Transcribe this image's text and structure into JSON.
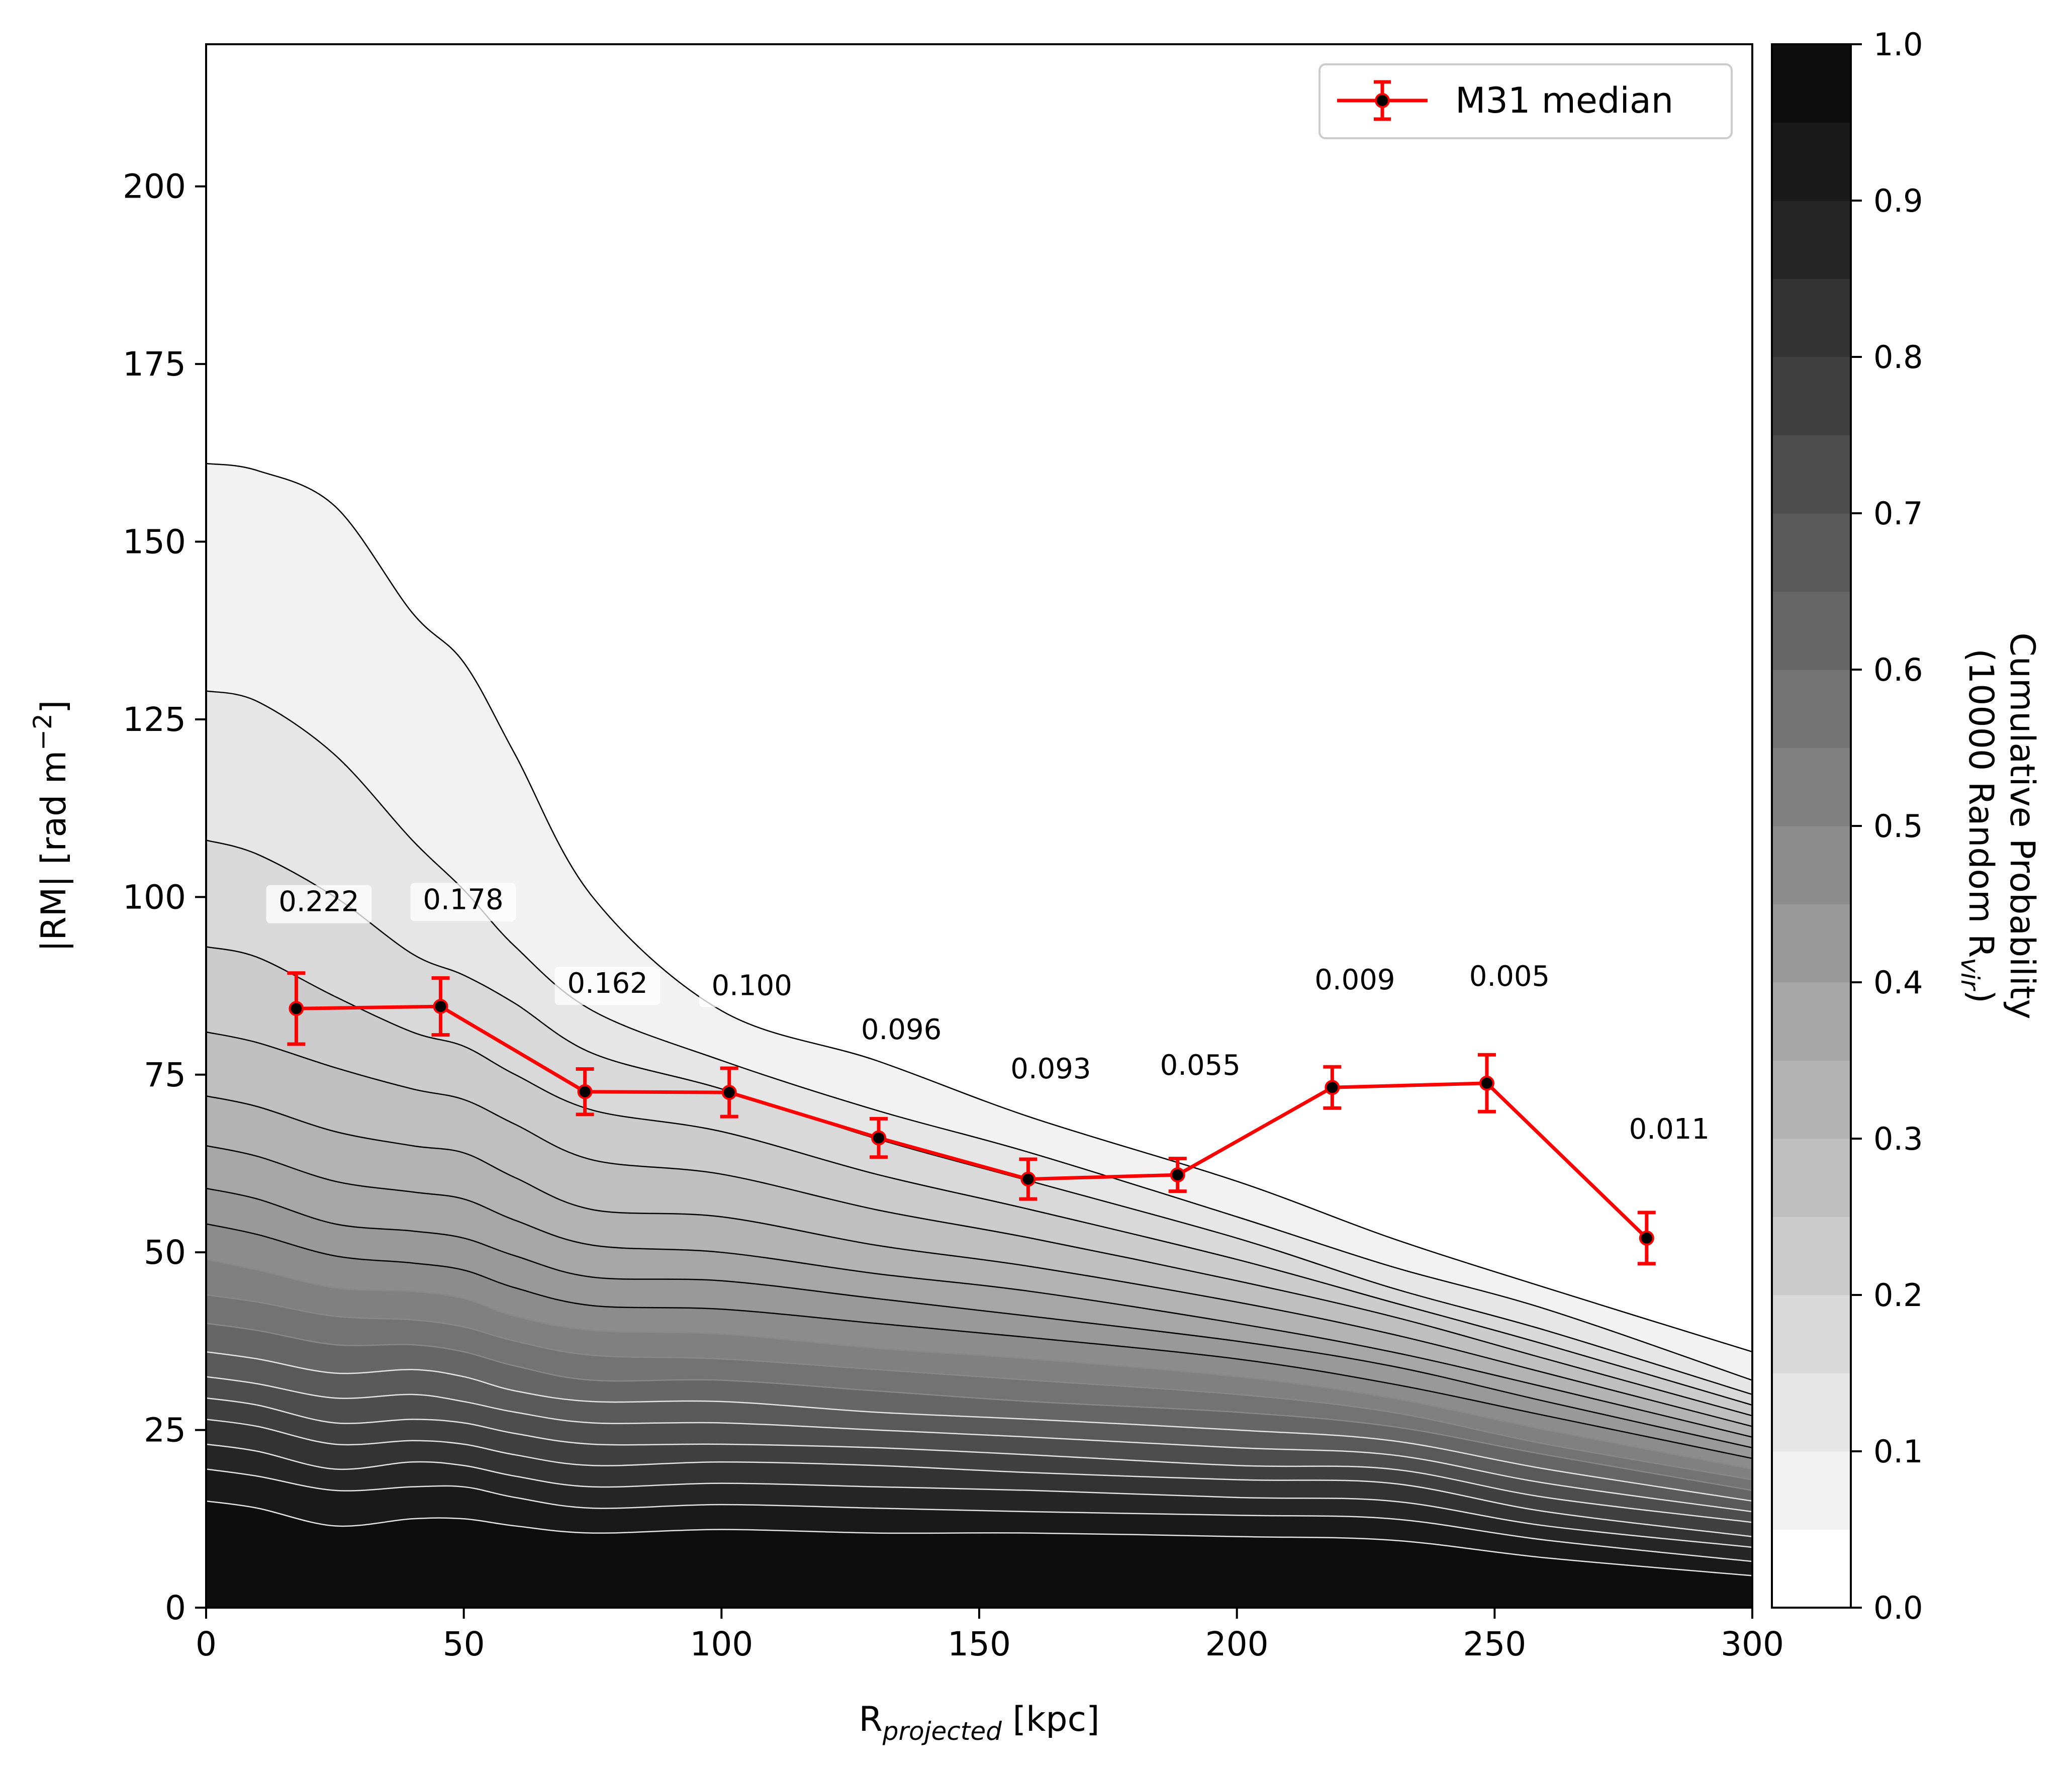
{
  "chart_data": {
    "type": "line",
    "xlabel": "R",
    "xlabel_subscript": "projected",
    "xlabel_unit": " [kpc]",
    "ylabel": "|RM| [rad m",
    "ylabel_superscript": "−2",
    "ylabel_end": "]",
    "xlim": [
      0,
      300
    ],
    "ylim": [
      0,
      220
    ],
    "xticks": [
      0,
      50,
      100,
      150,
      200,
      250,
      300
    ],
    "xtick_labels": [
      "0",
      "50",
      "100",
      "150",
      "200",
      "250",
      "300"
    ],
    "yticks": [
      0,
      25,
      50,
      75,
      100,
      125,
      150,
      175,
      200
    ],
    "ytick_labels": [
      "0",
      "25",
      "50",
      "75",
      "100",
      "125",
      "150",
      "175",
      "200"
    ],
    "grid": false,
    "legend_position": "top-right",
    "series": [
      {
        "name": "M31 median",
        "color": "#ff0000",
        "x": [
          17.5,
          45.5,
          73.5,
          101.5,
          130.5,
          159.5,
          188.5,
          218.5,
          248.5,
          279.5
        ],
        "y": [
          84.3,
          84.6,
          72.6,
          72.5,
          66.1,
          60.3,
          60.9,
          73.2,
          73.8,
          52.0
        ],
        "yerr": [
          5.0,
          4.0,
          3.2,
          3.4,
          2.7,
          2.8,
          2.3,
          2.9,
          4.0,
          3.6
        ],
        "pvalues": [
          "0.222",
          "0.178",
          "0.162",
          "0.100",
          "0.096",
          "0.093",
          "0.055",
          "0.009",
          "0.005",
          "0.011"
        ],
        "pvalue_label_y": [
          98,
          98.3,
          86.5,
          86.2,
          80,
          74.5,
          75,
          87,
          87.5,
          66
        ]
      }
    ],
    "contours": {
      "x": [
        0,
        10,
        25,
        40,
        50,
        60,
        75,
        100,
        130,
        160,
        200,
        230,
        260,
        300
      ],
      "levels": [
        0.05,
        0.1,
        0.15,
        0.2,
        0.25,
        0.3,
        0.35,
        0.4,
        0.45,
        0.5,
        0.55,
        0.6,
        0.65,
        0.7,
        0.75,
        0.8,
        0.85,
        0.9,
        0.95
      ],
      "curves": [
        [
          161.0,
          160.0,
          155.0,
          140.0,
          133.0,
          120.0,
          100.0,
          84.0,
          77.0,
          69.0,
          60.0,
          52.0,
          45.0,
          36.0
        ],
        [
          129.0,
          127.5,
          120.0,
          108.0,
          101.0,
          93.0,
          84.0,
          77.0,
          70.0,
          64.0,
          55.0,
          48.0,
          42.0,
          32.0
        ],
        [
          108.0,
          106.0,
          100.0,
          92.0,
          89.0,
          85.0,
          78.0,
          73.0,
          66.0,
          60.0,
          52.0,
          45.0,
          39.0,
          30.0
        ],
        [
          93.0,
          91.5,
          86.0,
          81.0,
          79.0,
          75.0,
          70.0,
          67.0,
          61.0,
          56.0,
          49.0,
          43.0,
          37.0,
          28.5
        ],
        [
          81.0,
          79.5,
          76.0,
          73.0,
          71.5,
          68.0,
          63.0,
          61.0,
          56.0,
          52.0,
          46.0,
          41.0,
          35.0,
          27.0
        ],
        [
          72.0,
          70.5,
          67.0,
          65.0,
          64.0,
          60.5,
          56.0,
          55.0,
          51.0,
          48.0,
          43.0,
          38.5,
          33.0,
          25.5
        ],
        [
          65.0,
          63.5,
          60.0,
          58.5,
          57.5,
          54.5,
          51.0,
          50.0,
          47.0,
          44.5,
          40.0,
          36.0,
          31.0,
          24.0
        ],
        [
          59.0,
          57.5,
          54.0,
          53.0,
          52.0,
          49.5,
          46.5,
          46.0,
          43.5,
          41.0,
          37.5,
          34.0,
          29.0,
          22.5
        ],
        [
          54.0,
          52.5,
          49.5,
          48.5,
          47.5,
          45.0,
          42.5,
          42.0,
          40.0,
          38.0,
          35.0,
          31.5,
          27.0,
          21.0
        ],
        [
          49.0,
          47.5,
          45.0,
          44.5,
          43.5,
          41.0,
          39.0,
          38.5,
          36.5,
          35.0,
          32.5,
          29.5,
          25.0,
          19.5
        ],
        [
          44.0,
          43.0,
          41.0,
          40.5,
          39.5,
          37.5,
          35.5,
          35.0,
          33.5,
          32.0,
          30.0,
          27.5,
          23.0,
          18.0
        ],
        [
          40.0,
          39.0,
          37.0,
          37.0,
          36.0,
          34.0,
          32.0,
          32.0,
          30.5,
          29.0,
          27.5,
          25.5,
          21.5,
          16.5
        ],
        [
          36.0,
          35.0,
          33.0,
          33.5,
          32.5,
          30.5,
          29.0,
          29.0,
          27.5,
          26.5,
          25.0,
          23.5,
          19.5,
          15.0
        ],
        [
          32.5,
          31.5,
          29.5,
          30.0,
          29.0,
          27.5,
          26.0,
          26.0,
          25.0,
          24.0,
          22.5,
          21.5,
          17.5,
          13.5
        ],
        [
          29.5,
          28.5,
          26.0,
          26.5,
          26.0,
          24.5,
          23.0,
          23.0,
          22.5,
          21.5,
          20.0,
          19.5,
          15.5,
          12.0
        ],
        [
          26.5,
          25.5,
          23.0,
          23.5,
          23.0,
          21.5,
          20.0,
          20.5,
          20.0,
          19.0,
          18.0,
          17.5,
          13.5,
          10.0
        ],
        [
          23.0,
          22.0,
          19.5,
          20.5,
          20.0,
          18.5,
          17.0,
          17.5,
          17.0,
          16.5,
          15.5,
          15.0,
          11.5,
          8.5
        ],
        [
          19.5,
          18.5,
          16.5,
          17.0,
          17.0,
          15.5,
          14.0,
          14.5,
          14.0,
          13.5,
          13.0,
          12.5,
          9.5,
          6.5
        ],
        [
          15.0,
          14.0,
          11.5,
          12.5,
          12.5,
          11.5,
          10.5,
          11.0,
          10.5,
          10.5,
          10.0,
          9.5,
          7.0,
          4.5
        ]
      ]
    },
    "colorbar": {
      "label_line1": "Cumulative Probability",
      "label_line2": "(10000 Random R",
      "label_line2_subscript": "vir",
      "label_line2_end": ")",
      "range": [
        0.0,
        1.0
      ],
      "ticks": [
        0.0,
        0.1,
        0.2,
        0.3,
        0.4,
        0.5,
        0.6,
        0.7,
        0.8,
        0.9,
        1.0
      ],
      "tick_labels": [
        "0.0",
        "0.1",
        "0.2",
        "0.3",
        "0.4",
        "0.5",
        "0.6",
        "0.7",
        "0.8",
        "0.9",
        "1.0"
      ],
      "bands": 20,
      "colormap": "gray_r"
    }
  }
}
